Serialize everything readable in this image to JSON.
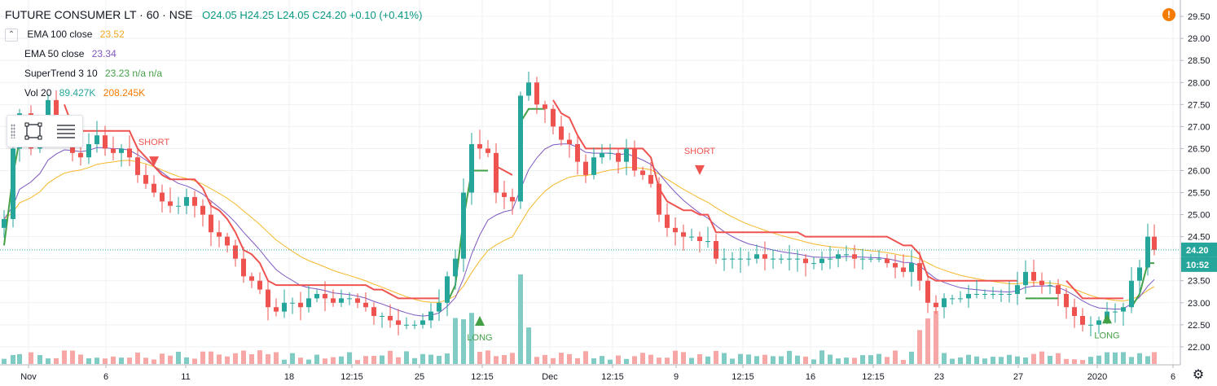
{
  "header": {
    "symbol": "FUTURE CONSUMER LT · 60 · NSE",
    "ohlc": "O24.05  H24.25  L24.05  C24.20  +0.10 (+0.41%)"
  },
  "indicators": [
    {
      "label": "EMA 100 close",
      "value": "23.52",
      "color": "#f5b829"
    },
    {
      "label": "EMA 50 close",
      "value": "23.34",
      "color": "#7e57c2"
    },
    {
      "label": "SuperTrend 3 10",
      "value": "23.23  n/a  n/a",
      "color": "#43a047"
    },
    {
      "label": "Vol 20",
      "value": "89.427K",
      "value2": "208.245K",
      "color": "#26a69a",
      "color2": "#f57c00"
    }
  ],
  "icons": {
    "collapse": "chevron-up-icon",
    "toolbox": [
      "drawing-rectangle-icon",
      "object-tree-icon"
    ],
    "alert": "warning-icon",
    "settings": "gear-icon"
  },
  "alert_glyph": "!",
  "settings_glyph": "⚙",
  "colors": {
    "up": "#26a69a",
    "down": "#ef5350",
    "vol_up": "#80cbc4",
    "vol_down": "#f7a8a6",
    "ema100": "#f5b829",
    "ema50": "#7e57c2",
    "st_up": "#43a047",
    "st_down": "#ef5350",
    "grid": "#eef0f3"
  },
  "chart_data": {
    "type": "candlestick",
    "y_ticks": [
      "22.00",
      "22.50",
      "23.00",
      "23.50",
      "24.00",
      "24.50",
      "25.00",
      "25.50",
      "26.00",
      "26.50",
      "27.00",
      "27.50",
      "28.00",
      "28.50",
      "29.00",
      "29.50"
    ],
    "ylim": [
      21.85,
      29.65
    ],
    "x_ticks": [
      "Nov",
      "6",
      "11",
      "18",
      "12:15",
      "25",
      "12:15",
      "Dec",
      "12:15",
      "9",
      "12:15",
      "16",
      "12:15",
      "23",
      "27",
      "2020",
      "6"
    ],
    "last_price": "24.20",
    "countdown": "10:52",
    "signals": [
      {
        "type": "SHORT",
        "bar": 18,
        "price": 26.1
      },
      {
        "type": "LONG",
        "bar": 58,
        "price": 22.7
      },
      {
        "type": "SHORT",
        "bar": 85,
        "price": 25.9
      },
      {
        "type": "LONG",
        "bar": 135,
        "price": 22.75
      }
    ],
    "candles": [
      {
        "x": 5,
        "c": 24.9
      },
      {
        "x": 16,
        "c": 26.5
      },
      {
        "x": 24,
        "c": 27.3
      },
      {
        "x": 38,
        "c": 26.5
      },
      {
        "x": 49,
        "c": 26.8
      },
      {
        "x": 59,
        "c": 27.6
      },
      {
        "x": 69,
        "c": 27
      },
      {
        "x": 79,
        "c": 26.9
      },
      {
        "x": 89,
        "c": 26.4
      },
      {
        "x": 99,
        "c": 26.3
      },
      {
        "x": 109,
        "c": 26.6
      },
      {
        "x": 119,
        "c": 26.8
      },
      {
        "x": 129,
        "c": 26.5
      },
      {
        "x": 139,
        "c": 26.4
      },
      {
        "x": 149,
        "c": 26.5
      },
      {
        "x": 159,
        "c": 26.3
      },
      {
        "x": 169,
        "c": 25.9
      },
      {
        "x": 179,
        "c": 25.7
      },
      {
        "x": 189,
        "c": 25.5
      },
      {
        "x": 199,
        "c": 25.3
      },
      {
        "x": 209,
        "c": 25.2
      },
      {
        "x": 219,
        "c": 25.2
      },
      {
        "x": 229,
        "c": 25.4
      },
      {
        "x": 239,
        "c": 25.2
      },
      {
        "x": 249,
        "c": 25
      },
      {
        "x": 259,
        "c": 24.6
      },
      {
        "x": 269,
        "c": 24.5
      },
      {
        "x": 279,
        "c": 24.3
      },
      {
        "x": 289,
        "c": 24
      },
      {
        "x": 299,
        "c": 23.6
      },
      {
        "x": 309,
        "c": 23.5
      },
      {
        "x": 319,
        "c": 23.3
      },
      {
        "x": 329,
        "c": 22.9
      },
      {
        "x": 339,
        "c": 22.8
      },
      {
        "x": 349,
        "c": 23
      },
      {
        "x": 359,
        "c": 23
      },
      {
        "x": 369,
        "c": 22.9
      },
      {
        "x": 379,
        "c": 23.1
      },
      {
        "x": 389,
        "c": 23.2
      },
      {
        "x": 399,
        "c": 23.1
      },
      {
        "x": 409,
        "c": 23
      },
      {
        "x": 419,
        "c": 23.1
      },
      {
        "x": 429,
        "c": 23.1
      },
      {
        "x": 439,
        "c": 23
      },
      {
        "x": 449,
        "c": 22.9
      },
      {
        "x": 459,
        "c": 22.7
      },
      {
        "x": 469,
        "c": 22.7
      },
      {
        "x": 479,
        "c": 22.6
      },
      {
        "x": 489,
        "c": 22.5
      },
      {
        "x": 499,
        "c": 22.5
      },
      {
        "x": 509,
        "c": 22.5
      },
      {
        "x": 519,
        "c": 22.6
      },
      {
        "x": 529,
        "c": 22.8
      },
      {
        "x": 539,
        "c": 23
      },
      {
        "x": 549,
        "c": 23.6
      },
      {
        "x": 559,
        "c": 24
      },
      {
        "x": 569,
        "c": 25.5
      },
      {
        "x": 579,
        "c": 26.6
      },
      {
        "x": 589,
        "c": 26.5
      },
      {
        "x": 599,
        "c": 26.4
      },
      {
        "x": 609,
        "c": 25.5
      },
      {
        "x": 619,
        "c": 25.4
      },
      {
        "x": 629,
        "c": 25.3
      },
      {
        "x": 639,
        "c": 27.7
      },
      {
        "x": 649,
        "c": 28
      },
      {
        "x": 659,
        "c": 27.5
      },
      {
        "x": 669,
        "c": 27.4
      },
      {
        "x": 679,
        "c": 27
      },
      {
        "x": 689,
        "c": 26.7
      },
      {
        "x": 699,
        "c": 26.6
      },
      {
        "x": 709,
        "c": 26.2
      },
      {
        "x": 719,
        "c": 25.9
      },
      {
        "x": 729,
        "c": 26.3
      },
      {
        "x": 739,
        "c": 26.4
      },
      {
        "x": 749,
        "c": 26.4
      },
      {
        "x": 759,
        "c": 26.2
      },
      {
        "x": 769,
        "c": 26.5
      },
      {
        "x": 779,
        "c": 26
      },
      {
        "x": 789,
        "c": 25.9
      },
      {
        "x": 799,
        "c": 25.7
      },
      {
        "x": 809,
        "c": 25
      },
      {
        "x": 819,
        "c": 24.7
      },
      {
        "x": 829,
        "c": 24.6
      },
      {
        "x": 839,
        "c": 24.5
      },
      {
        "x": 849,
        "c": 24.5
      },
      {
        "x": 859,
        "c": 24.4
      },
      {
        "x": 869,
        "c": 24.4
      },
      {
        "x": 879,
        "c": 24
      },
      {
        "x": 889,
        "c": 24
      },
      {
        "x": 899,
        "c": 24
      },
      {
        "x": 909,
        "c": 24
      },
      {
        "x": 919,
        "c": 24
      },
      {
        "x": 929,
        "c": 24.1
      },
      {
        "x": 939,
        "c": 24
      },
      {
        "x": 949,
        "c": 24
      },
      {
        "x": 959,
        "c": 24
      },
      {
        "x": 969,
        "c": 24
      },
      {
        "x": 979,
        "c": 24
      },
      {
        "x": 989,
        "c": 23.9
      },
      {
        "x": 999,
        "c": 23.9
      },
      {
        "x": 1009,
        "c": 24
      },
      {
        "x": 1019,
        "c": 24
      },
      {
        "x": 1029,
        "c": 24.1
      },
      {
        "x": 1039,
        "c": 24.1
      },
      {
        "x": 1049,
        "c": 24
      },
      {
        "x": 1059,
        "c": 24
      },
      {
        "x": 1069,
        "c": 24
      },
      {
        "x": 1079,
        "c": 24
      },
      {
        "x": 1089,
        "c": 23.9
      },
      {
        "x": 1099,
        "c": 23.8
      },
      {
        "x": 1109,
        "c": 23.7
      },
      {
        "x": 1119,
        "c": 23.9
      },
      {
        "x": 1129,
        "c": 23.5
      },
      {
        "x": 1139,
        "c": 23
      },
      {
        "x": 1149,
        "c": 22.9
      },
      {
        "x": 1159,
        "c": 23.1
      },
      {
        "x": 1169,
        "c": 23.1
      },
      {
        "x": 1179,
        "c": 23.1
      },
      {
        "x": 1189,
        "c": 23.2
      },
      {
        "x": 1199,
        "c": 23.2
      },
      {
        "x": 1209,
        "c": 23.2
      },
      {
        "x": 1219,
        "c": 23.2
      },
      {
        "x": 1229,
        "c": 23.2
      },
      {
        "x": 1239,
        "c": 23.2
      },
      {
        "x": 1249,
        "c": 23.4
      },
      {
        "x": 1259,
        "c": 23.7
      },
      {
        "x": 1269,
        "c": 23.5
      },
      {
        "x": 1279,
        "c": 23.4
      },
      {
        "x": 1289,
        "c": 23.4
      },
      {
        "x": 1299,
        "c": 23.2
      },
      {
        "x": 1309,
        "c": 22.9
      },
      {
        "x": 1319,
        "c": 22.7
      },
      {
        "x": 1329,
        "c": 22.5
      },
      {
        "x": 1339,
        "c": 22.5
      },
      {
        "x": 1349,
        "c": 22.6
      },
      {
        "x": 1359,
        "c": 22.8
      },
      {
        "x": 1369,
        "c": 22.8
      },
      {
        "x": 1379,
        "c": 22.9
      },
      {
        "x": 1389,
        "c": 23.5
      },
      {
        "x": 1399,
        "c": 23.8
      },
      {
        "x": 1409,
        "c": 24.5
      },
      {
        "x": 1417,
        "c": 24.2
      }
    ],
    "volume_hint": "volume bars along the bottom, spikes near 25 Nov, 2 Dec and 20-23 Dec"
  }
}
